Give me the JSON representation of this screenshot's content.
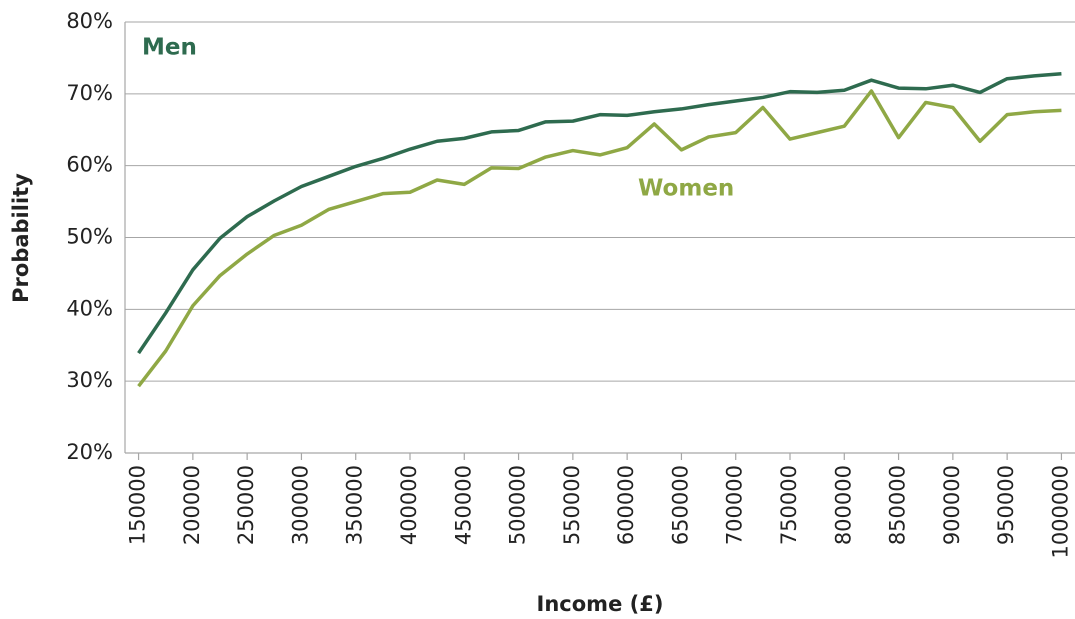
{
  "chart_data": {
    "type": "line",
    "xlabel": "Income (£)",
    "ylabel": "Probability",
    "x": [
      150000,
      175000,
      200000,
      225000,
      250000,
      275000,
      300000,
      325000,
      350000,
      375000,
      400000,
      425000,
      450000,
      475000,
      500000,
      525000,
      550000,
      575000,
      600000,
      625000,
      650000,
      675000,
      700000,
      725000,
      750000,
      775000,
      800000,
      825000,
      850000,
      875000,
      900000,
      925000,
      950000,
      975000,
      1000000
    ],
    "series": [
      {
        "name": "Men",
        "color": "#2e6b4f",
        "values": [
          33.9,
          39.5,
          45.5,
          49.9,
          52.9,
          55.1,
          57.1,
          58.5,
          59.9,
          61.0,
          62.3,
          63.4,
          63.8,
          64.7,
          64.9,
          66.1,
          66.2,
          67.1,
          67.0,
          67.5,
          67.9,
          68.5,
          69.0,
          69.5,
          70.3,
          70.2,
          70.5,
          71.9,
          70.8,
          70.7,
          71.2,
          70.2,
          72.1,
          72.5,
          72.8
        ]
      },
      {
        "name": "Women",
        "color": "#8fa845",
        "values": [
          29.3,
          34.2,
          40.5,
          44.7,
          47.7,
          50.3,
          51.7,
          53.9,
          55.0,
          56.1,
          56.3,
          58.0,
          57.4,
          59.7,
          59.6,
          61.2,
          62.1,
          61.5,
          62.5,
          65.8,
          62.2,
          64.0,
          64.6,
          68.1,
          63.7,
          64.6,
          65.5,
          70.4,
          63.9,
          68.8,
          68.1,
          63.4,
          67.1,
          67.5,
          67.7
        ]
      }
    ],
    "xlim": [
      137500,
      1012500
    ],
    "xticks": [
      150000,
      200000,
      250000,
      300000,
      350000,
      400000,
      450000,
      500000,
      550000,
      600000,
      650000,
      700000,
      750000,
      800000,
      850000,
      900000,
      950000,
      1000000
    ],
    "ylim": [
      20,
      80
    ],
    "yticks": [
      {
        "value": 20,
        "label": "20%"
      },
      {
        "value": 30,
        "label": "30%"
      },
      {
        "value": 40,
        "label": "40%"
      },
      {
        "value": 50,
        "label": "50%"
      },
      {
        "value": 60,
        "label": "60%"
      },
      {
        "value": 70,
        "label": "70%"
      },
      {
        "value": 80,
        "label": "80%"
      }
    ],
    "grid": true
  }
}
